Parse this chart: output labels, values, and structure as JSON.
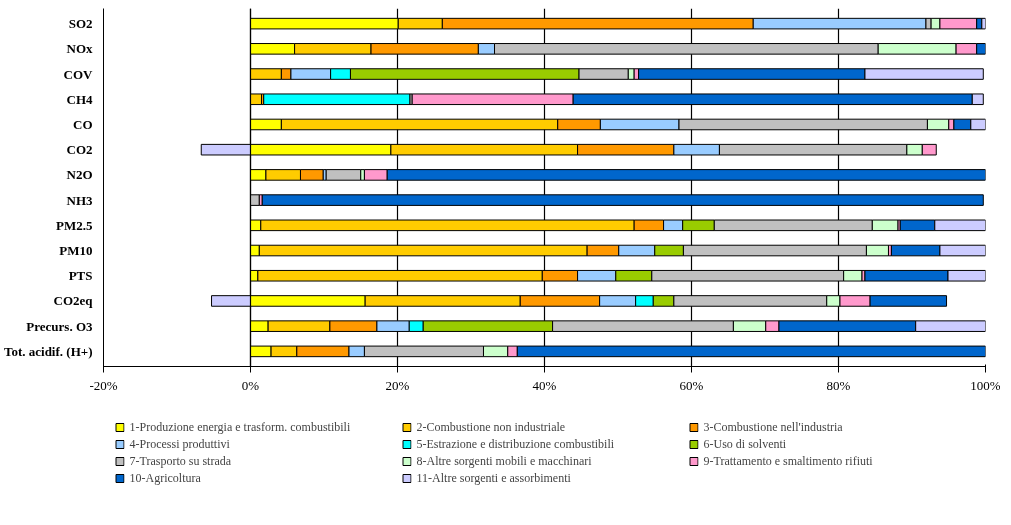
{
  "chart_data": {
    "type": "bar",
    "orientation": "horizontal",
    "stacked": true,
    "categories": [
      "SO2",
      "NOx",
      "COV",
      "CH4",
      "CO",
      "CO2",
      "N2O",
      "NH3",
      "PM2.5",
      "PM10",
      "PTS",
      "CO2eq",
      "Precurs. O3",
      "Tot. acidif. (H+)"
    ],
    "series": [
      {
        "name": "1-Produzione energia e trasform. combustibili",
        "color": "#ffff00",
        "values": [
          20.1,
          6.0,
          null,
          null,
          4.2,
          19.1,
          2.1,
          null,
          1.4,
          1.2,
          1.0,
          15.6,
          2.4,
          2.8
        ]
      },
      {
        "name": "2-Combustione non industriale",
        "color": "#ffcc00",
        "values": [
          6.0,
          10.4,
          4.2,
          1.5,
          37.6,
          25.4,
          4.7,
          null,
          50.8,
          44.6,
          38.7,
          21.1,
          8.4,
          3.5
        ]
      },
      {
        "name": "3-Combustione nell'industria",
        "color": "#ff9900",
        "values": [
          42.3,
          14.6,
          1.3,
          0.3,
          5.8,
          13.1,
          3.1,
          null,
          4.0,
          4.3,
          4.8,
          10.8,
          6.4,
          7.1
        ]
      },
      {
        "name": "4-Processi produttivi",
        "color": "#99ccff",
        "values": [
          23.5,
          2.2,
          5.4,
          null,
          10.7,
          6.2,
          0.4,
          null,
          2.6,
          4.9,
          5.2,
          4.9,
          4.4,
          2.1
        ]
      },
      {
        "name": "5-Estrazione e distribuzione combustibili",
        "color": "#00ffff",
        "values": [
          null,
          null,
          2.7,
          19.9,
          null,
          null,
          null,
          null,
          null,
          null,
          null,
          2.4,
          1.9,
          null
        ]
      },
      {
        "name": "6-Uso di solventi",
        "color": "#99cc00",
        "values": [
          null,
          null,
          31.1,
          null,
          null,
          null,
          null,
          null,
          4.3,
          3.9,
          4.9,
          2.8,
          17.6,
          null
        ]
      },
      {
        "name": "7-Trasporto su strada",
        "color": "#c0c0c0",
        "values": [
          0.7,
          52.2,
          6.7,
          0.3,
          33.8,
          25.5,
          4.7,
          1.2,
          21.5,
          24.9,
          26.1,
          20.8,
          24.6,
          16.2
        ]
      },
      {
        "name": "8-Altre sorgenti mobili e macchinari",
        "color": "#ccffcc",
        "values": [
          1.2,
          10.6,
          0.8,
          null,
          2.9,
          2.1,
          0.5,
          null,
          3.5,
          3.0,
          2.5,
          1.8,
          4.4,
          3.3
        ]
      },
      {
        "name": "9-Trattamento e smaltimento rifiuti",
        "color": "#ff99cc",
        "values": [
          5.0,
          2.8,
          0.6,
          21.9,
          0.7,
          1.9,
          3.1,
          0.4,
          0.3,
          0.4,
          0.4,
          4.1,
          1.8,
          1.3
        ]
      },
      {
        "name": "10-Agricoltura",
        "color": "#0066cc",
        "values": [
          0.7,
          1.2,
          30.8,
          54.3,
          2.3,
          null,
          81.4,
          98.1,
          4.7,
          6.6,
          11.3,
          10.4,
          18.6,
          63.7
        ]
      },
      {
        "name": "11-Altre sorgenti e assorbimenti",
        "color": "#ccccff",
        "values": [
          0.5,
          null,
          16.1,
          1.5,
          2.0,
          -6.7,
          null,
          null,
          6.9,
          6.2,
          5.1,
          -5.3,
          9.5,
          null
        ]
      }
    ],
    "xlim": [
      -20,
      100
    ],
    "xticks": [
      {
        "value": -20,
        "label": "-20%"
      },
      {
        "value": 0,
        "label": "0%"
      },
      {
        "value": 20,
        "label": "20%"
      },
      {
        "value": 40,
        "label": "40%"
      },
      {
        "value": 60,
        "label": "60%"
      },
      {
        "value": 80,
        "label": "80%"
      },
      {
        "value": 100,
        "label": "100%"
      }
    ],
    "grid": "x",
    "legend": "bottom"
  }
}
